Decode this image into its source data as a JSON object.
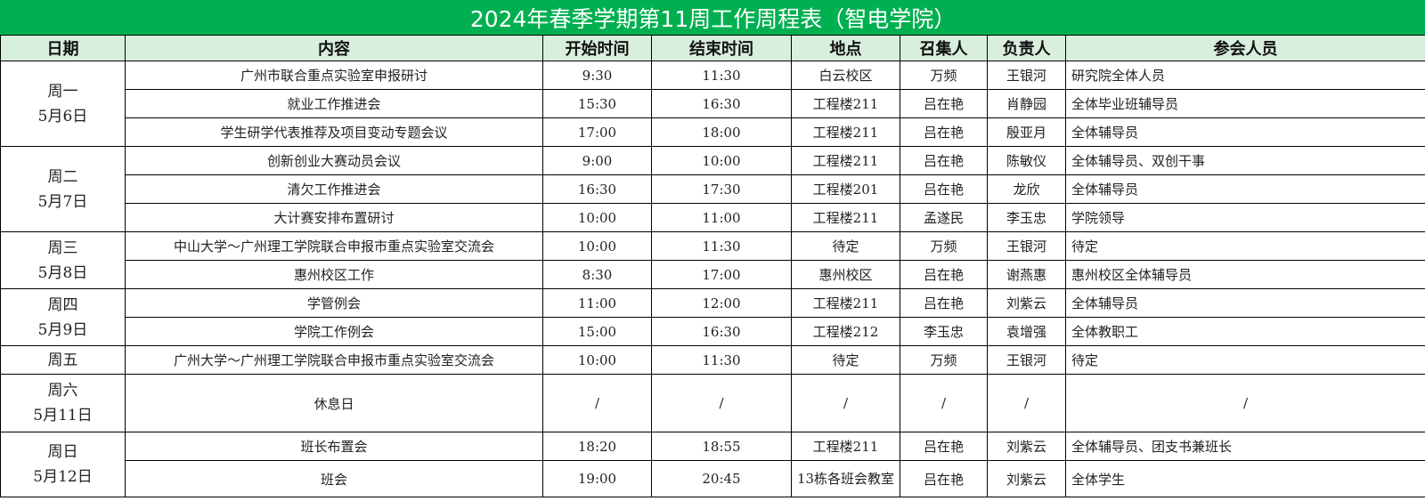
{
  "title": "2024年春季学期第11周工作周程表（智电学院）",
  "colors": {
    "title_bg": "#00B050",
    "header_bg": "#D8EFDD"
  },
  "headers": [
    "日期",
    "内容",
    "开始时间",
    "结束时间",
    "地点",
    "召集人",
    "负责人",
    "参会人员"
  ],
  "days": [
    {
      "day": "周一",
      "date": "5月6日",
      "rows": [
        [
          "广州市联合重点实验室申报研讨",
          "9:30",
          "11:30",
          "白云校区",
          "万频",
          "王银河",
          "研究院全体人员"
        ],
        [
          "就业工作推进会",
          "15:30",
          "16:30",
          "工程楼211",
          "吕在艳",
          "肖静园",
          "全体毕业班辅导员"
        ],
        [
          "学生研学代表推荐及项目变动专题会议",
          "17:00",
          "18:00",
          "工程楼211",
          "吕在艳",
          "殷亚月",
          "全体辅导员"
        ]
      ]
    },
    {
      "day": "周二",
      "date": "5月7日",
      "rows": [
        [
          "创新创业大赛动员会议",
          "9:00",
          "10:00",
          "工程楼211",
          "吕在艳",
          "陈敏仪",
          "全体辅导员、双创干事"
        ],
        [
          "清欠工作推进会",
          "16:30",
          "17:30",
          "工程楼201",
          "吕在艳",
          "龙欣",
          "全体辅导员"
        ],
        [
          "大计赛安排布置研讨",
          "10:00",
          "11:00",
          "工程楼211",
          "孟遂民",
          "李玉忠",
          "学院领导"
        ]
      ]
    },
    {
      "day": "周三",
      "date": "5月8日",
      "rows": [
        [
          "中山大学～广州理工学院联合申报市重点实验室交流会",
          "10:00",
          "11:30",
          "待定",
          "万频",
          "王银河",
          "待定"
        ],
        [
          "惠州校区工作",
          "8:30",
          "17:00",
          "惠州校区",
          "吕在艳",
          "谢燕惠",
          "惠州校区全体辅导员"
        ]
      ]
    },
    {
      "day": "周四",
      "date": "5月9日",
      "rows": [
        [
          "学管例会",
          "11:00",
          "12:00",
          "工程楼211",
          "吕在艳",
          "刘紫云",
          "全体辅导员"
        ],
        [
          "学院工作例会",
          "15:00",
          "16:30",
          "工程楼212",
          "李玉忠",
          "袁增强",
          "全体教职工"
        ]
      ]
    },
    {
      "day": "周五",
      "date": "",
      "rows": [
        [
          "广州大学～广州理工学院联合申报市重点实验室交流会",
          "10:00",
          "11:30",
          "待定",
          "万频",
          "王银河",
          "待定"
        ]
      ]
    },
    {
      "day": "周六",
      "date": "5月11日",
      "rows": [
        [
          "休息日",
          "/",
          "/",
          "/",
          "/",
          "/",
          "/"
        ]
      ]
    },
    {
      "day": "周日",
      "date": "5月12日",
      "rows": [
        [
          "班长布置会",
          "18:20",
          "18:55",
          "工程楼211",
          "吕在艳",
          "刘紫云",
          "全体辅导员、团支书兼班长"
        ],
        [
          "班会",
          "19:00",
          "20:45",
          "13栋各班会教室",
          "吕在艳",
          "刘紫云",
          "全体学生"
        ]
      ]
    }
  ]
}
